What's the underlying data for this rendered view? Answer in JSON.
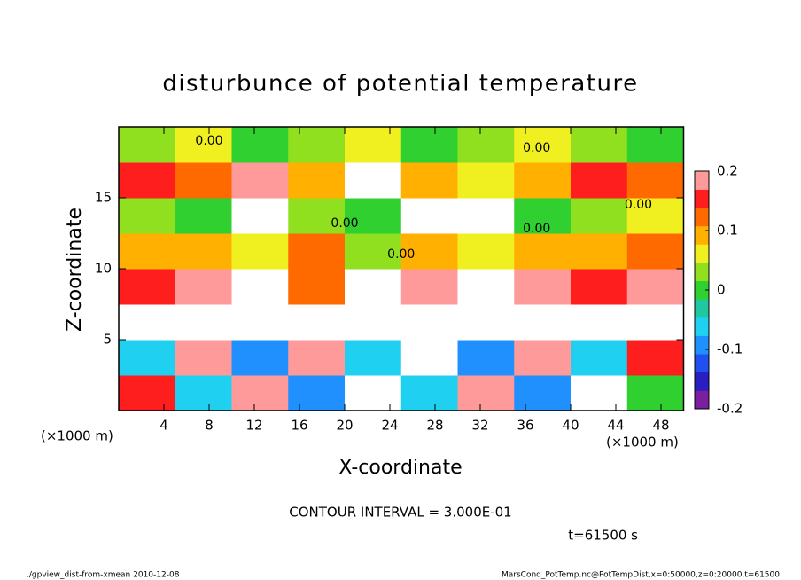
{
  "chart_data": {
    "type": "heatmap",
    "title": "disturbunce of potential temperature",
    "xlabel": "X-coordinate",
    "ylabel": "Z-coordinate",
    "x_unit": "(×1000 m)",
    "y_unit": "(×1000 m)",
    "xlim": [
      0,
      50
    ],
    "ylim": [
      0,
      20
    ],
    "xticks": [
      4,
      8,
      12,
      16,
      20,
      24,
      28,
      32,
      36,
      40,
      44,
      48
    ],
    "yticks": [
      5,
      10,
      15
    ],
    "x_edges": [
      0,
      5,
      10,
      15,
      20,
      25,
      30,
      35,
      40,
      45,
      50
    ],
    "z_edges": [
      0,
      2.5,
      5,
      7.5,
      10,
      12.5,
      15,
      17.5,
      20
    ],
    "z": [
      [
        0.15,
        -0.05,
        0.2,
        -0.1,
        0.25,
        -0.05,
        0.18,
        -0.08,
        0.22,
        0.0
      ],
      [
        -0.05,
        0.2,
        -0.1,
        0.18,
        -0.05,
        0.22,
        -0.1,
        0.2,
        -0.05,
        0.15
      ],
      [
        0.25,
        0.25,
        0.22,
        0.25,
        0.25,
        0.25,
        0.25,
        0.22,
        0.25,
        0.25
      ],
      [
        0.15,
        0.18,
        0.25,
        0.12,
        0.25,
        0.2,
        0.25,
        0.18,
        0.15,
        0.2
      ],
      [
        0.08,
        0.1,
        0.05,
        0.12,
        0.02,
        0.1,
        0.05,
        0.08,
        0.1,
        0.12
      ],
      [
        0.02,
        0.0,
        0.25,
        0.02,
        0.0,
        0.25,
        0.25,
        0.0,
        0.02,
        0.05
      ],
      [
        0.15,
        0.12,
        0.18,
        0.1,
        0.25,
        0.08,
        0.05,
        0.1,
        0.15,
        0.12
      ],
      [
        0.02,
        0.05,
        0.0,
        0.02,
        0.05,
        0.0,
        0.02,
        0.05,
        0.02,
        0.0
      ]
    ],
    "zlim": [
      -0.2,
      0.2
    ],
    "colorbar_ticks": [
      -0.2,
      -0.1,
      0,
      0.1,
      0.2
    ],
    "colors": [
      "#7a1fa0",
      "#2a1ec0",
      "#2050f0",
      "#2090ff",
      "#20d0f0",
      "#20c8a0",
      "#30d030",
      "#90e020",
      "#f0f020",
      "#ffb000",
      "#ff6a00",
      "#ff1e1e",
      "#ff9a9a"
    ],
    "over_color": "#ffffff",
    "contour_labels": [
      {
        "x": 8,
        "z": 19,
        "text": "0.00"
      },
      {
        "x": 20,
        "z": 13.2,
        "text": "0.00"
      },
      {
        "x": 37,
        "z": 12.8,
        "text": "0.00"
      },
      {
        "x": 46,
        "z": 14.5,
        "text": "0.00"
      },
      {
        "x": 25,
        "z": 11,
        "text": "0.00"
      },
      {
        "x": 37,
        "z": 18.5,
        "text": "0.00"
      }
    ],
    "annotation": "CONTOUR INTERVAL = 3.000E-01",
    "time_label": "t=61500 s",
    "footer_left": "./gpview_dist-from-xmean  2010-12-08",
    "footer_right": "MarsCond_PotTemp.nc@PotTempDist,x=0:50000,z=0:20000,t=61500"
  }
}
